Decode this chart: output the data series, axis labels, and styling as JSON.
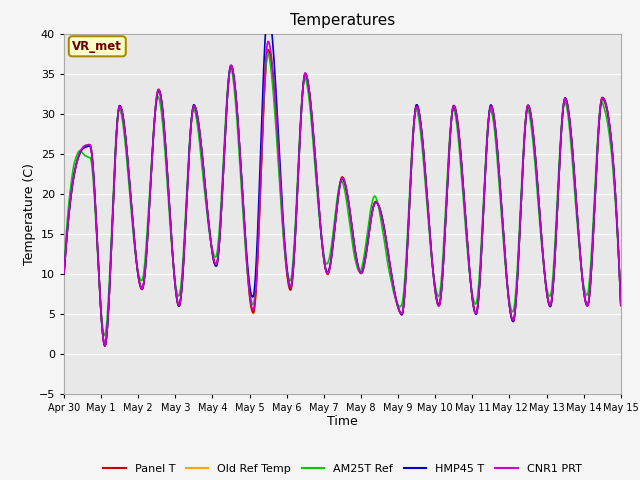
{
  "title": "Temperatures",
  "xlabel": "Time",
  "ylabel": "Temperature (C)",
  "ylim": [
    -5,
    40
  ],
  "series": {
    "Panel T": {
      "color": "#cc0000",
      "lw": 1.2,
      "zorder": 4
    },
    "Old Ref Temp": {
      "color": "#ffa500",
      "lw": 1.2,
      "zorder": 3
    },
    "AM25T Ref": {
      "color": "#00cc00",
      "lw": 1.2,
      "zorder": 5
    },
    "HMP45 T": {
      "color": "#0000cc",
      "lw": 1.2,
      "zorder": 6
    },
    "CNR1 PRT": {
      "color": "#cc00cc",
      "lw": 1.2,
      "zorder": 7
    }
  },
  "xtick_labels": [
    "Apr 30",
    "May 1",
    "May 2",
    "May 3",
    "May 4",
    "May 5",
    "May 6",
    "May 7",
    "May 8",
    "May 9",
    "May 10",
    "May 11",
    "May 12",
    "May 13",
    "May 14",
    "May 15"
  ],
  "annotation_text": "VR_met",
  "annotation_facecolor": "#ffffcc",
  "annotation_edgecolor": "#aa8800",
  "annotation_textcolor": "#660000",
  "fig_facecolor": "#f5f5f5",
  "ax_facecolor": "#e8e8e8",
  "grid_color": "#ffffff",
  "seed": 42,
  "n_points": 2000,
  "peak_days": [
    0.7,
    1.5,
    2.55,
    3.5,
    4.5,
    5.5,
    6.5,
    7.5,
    8.4,
    9.5,
    10.5,
    11.5,
    12.5,
    13.5,
    14.5
  ],
  "peak_heights": [
    26,
    31,
    33,
    31,
    36,
    38,
    35,
    22,
    19,
    31,
    31,
    31,
    31,
    32,
    32
  ],
  "trough_days": [
    0.0,
    1.1,
    2.1,
    3.1,
    4.1,
    5.1,
    6.1,
    7.1,
    8.0,
    9.1,
    10.1,
    11.1,
    12.1,
    13.1,
    14.1,
    15.0
  ],
  "trough_heights": [
    10,
    1,
    8,
    6,
    11,
    5,
    8,
    10,
    10,
    5,
    6,
    5,
    4,
    6,
    6,
    6
  ]
}
